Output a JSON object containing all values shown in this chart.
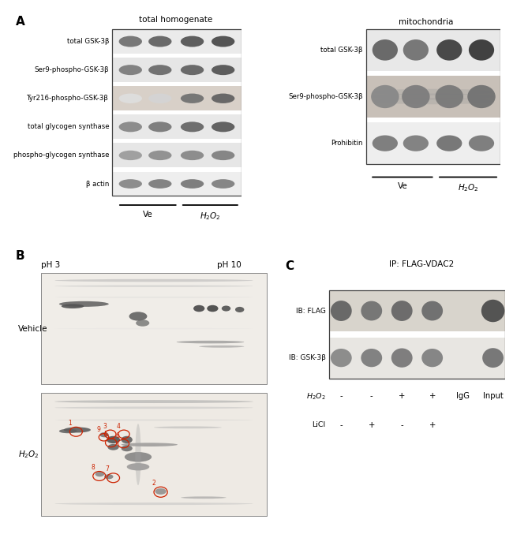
{
  "bg_color": "#ffffff",
  "panel_A_left": {
    "title": "total homogenate",
    "rows": [
      "total GSK-3β",
      "Ser9-phospho-GSK-3β",
      "Tyr216-phospho-GSK-3β",
      "total glycogen synthase",
      "phospho-glycogen synthase",
      "β actin"
    ],
    "n_rows": 6
  },
  "panel_A_right": {
    "title": "mitochondria",
    "rows": [
      "total GSK-3β",
      "Ser9-phospho-GSK-3β",
      "Prohibitin"
    ],
    "n_rows": 3
  },
  "panel_C": {
    "title": "IP: FLAG-VDAC2",
    "rows": [
      "IB: FLAG",
      "IB: GSK-3β"
    ],
    "h2o2_vals": [
      "-",
      "-",
      "+",
      "+",
      "IgG",
      "Input"
    ],
    "licl_vals": [
      "-",
      "+",
      "-",
      "+",
      "",
      ""
    ]
  },
  "colors": {
    "red_circle": "#cc2200"
  }
}
